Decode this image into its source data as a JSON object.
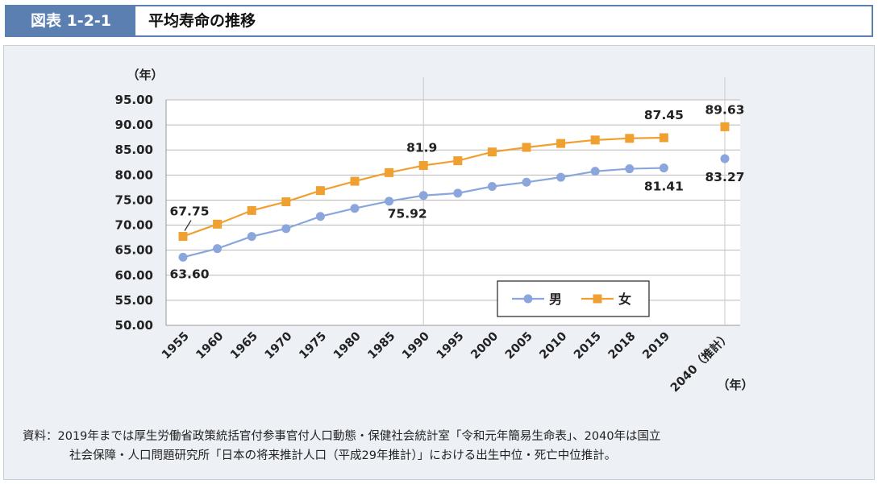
{
  "header": {
    "badge": "図表 1-2-1",
    "title": "平均寿命の推移"
  },
  "chart_data": {
    "type": "line",
    "y_unit_label": "（年）",
    "x_unit_label": "（年）",
    "ylim": [
      50,
      95
    ],
    "yticks": [
      "95.00",
      "90.00",
      "85.00",
      "80.00",
      "75.00",
      "70.00",
      "65.00",
      "60.00",
      "55.00",
      "50.00"
    ],
    "categories": [
      "1955",
      "1960",
      "1965",
      "1970",
      "1975",
      "1980",
      "1985",
      "1990",
      "1995",
      "2000",
      "2005",
      "2010",
      "2015",
      "2018",
      "2019",
      "2040（推計）"
    ],
    "series": [
      {
        "name": "男",
        "color": "#8aa6dc",
        "values": [
          63.6,
          65.32,
          67.74,
          69.31,
          71.73,
          73.35,
          74.78,
          75.92,
          76.38,
          77.72,
          78.56,
          79.55,
          80.75,
          81.25,
          81.41,
          83.27
        ]
      },
      {
        "name": "女",
        "color": "#f0a030",
        "values": [
          67.75,
          70.19,
          72.92,
          74.66,
          76.89,
          78.76,
          80.48,
          81.9,
          82.85,
          84.6,
          85.52,
          86.3,
          86.99,
          87.32,
          87.45,
          89.63
        ]
      }
    ],
    "data_labels": [
      {
        "text": "67.75",
        "series": 1,
        "index": 0
      },
      {
        "text": "63.60",
        "series": 0,
        "index": 0
      },
      {
        "text": "75.92",
        "series": 0,
        "index": 7
      },
      {
        "text": "81.9",
        "series": 1,
        "index": 7
      },
      {
        "text": "87.45",
        "series": 1,
        "index": 14
      },
      {
        "text": "81.41",
        "series": 0,
        "index": 14
      },
      {
        "text": "89.63",
        "series": 1,
        "index": 15
      },
      {
        "text": "83.27",
        "series": 0,
        "index": 15
      }
    ],
    "legend_position": "bottom-right",
    "grid": "horizontal"
  },
  "source": {
    "line1": "資料：2019年までは厚生労働省政策統括官付参事官付人口動態・保健社会統計室「令和元年簡易生命表」、2040年は国立",
    "line2": "社会保障・人口問題研究所「日本の将来推計人口（平成29年推計）」における出生中位・死亡中位推計。"
  }
}
